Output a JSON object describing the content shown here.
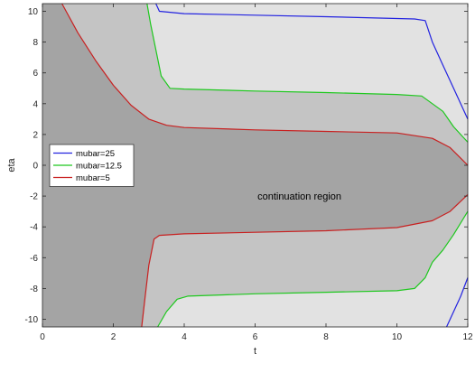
{
  "chart_data": {
    "type": "area",
    "title": "",
    "xlabel": "t",
    "ylabel": "eta",
    "xlim": [
      0,
      12
    ],
    "ylim": [
      -10.5,
      10.5
    ],
    "xticks": [
      0,
      2,
      4,
      6,
      8,
      10,
      12
    ],
    "yticks": [
      10,
      8,
      6,
      4,
      2,
      0,
      -2,
      -4,
      -6,
      -8,
      -10
    ],
    "grid": false,
    "legend_position": "middle-left",
    "annotation": "continuation region",
    "colors": {
      "band_light": "#e2e2e2",
      "band_mid": "#c4c4c4",
      "band_dark": "#a4a4a4",
      "axis": "#262626"
    },
    "series": [
      {
        "name": "mubar=25",
        "color": "#2323e0",
        "upper": [
          [
            3.2,
            10.5
          ],
          [
            3.3,
            10.0
          ],
          [
            4.0,
            9.85
          ],
          [
            6.0,
            9.75
          ],
          [
            8.0,
            9.65
          ],
          [
            10.5,
            9.5
          ],
          [
            10.8,
            9.4
          ],
          [
            11.0,
            8.0
          ],
          [
            11.3,
            6.5
          ],
          [
            11.6,
            5.0
          ],
          [
            12.0,
            3.0
          ]
        ],
        "lower": [
          [
            11.4,
            -10.5
          ],
          [
            11.8,
            -8.5
          ],
          [
            12.0,
            -7.3
          ]
        ]
      },
      {
        "name": "mubar=12.5",
        "color": "#1ec81e",
        "upper": [
          [
            2.95,
            10.5
          ],
          [
            3.05,
            9.2
          ],
          [
            3.2,
            7.5
          ],
          [
            3.35,
            5.8
          ],
          [
            3.6,
            5.0
          ],
          [
            4.0,
            4.95
          ],
          [
            6.0,
            4.82
          ],
          [
            8.0,
            4.72
          ],
          [
            10.0,
            4.6
          ],
          [
            10.7,
            4.5
          ],
          [
            11.0,
            4.0
          ],
          [
            11.3,
            3.5
          ],
          [
            11.6,
            2.5
          ],
          [
            12.0,
            1.5
          ]
        ],
        "lower": [
          [
            3.25,
            -10.5
          ],
          [
            3.5,
            -9.5
          ],
          [
            3.8,
            -8.7
          ],
          [
            4.1,
            -8.5
          ],
          [
            6.0,
            -8.35
          ],
          [
            8.0,
            -8.25
          ],
          [
            10.0,
            -8.15
          ],
          [
            10.5,
            -8.0
          ],
          [
            10.8,
            -7.3
          ],
          [
            11.0,
            -6.3
          ],
          [
            11.3,
            -5.5
          ],
          [
            11.6,
            -4.5
          ],
          [
            12.0,
            -3.0
          ]
        ]
      },
      {
        "name": "mubar=5",
        "color": "#c82020",
        "upper": [
          [
            0.55,
            10.5
          ],
          [
            1.0,
            8.6
          ],
          [
            1.5,
            6.8
          ],
          [
            2.0,
            5.2
          ],
          [
            2.5,
            3.9
          ],
          [
            3.0,
            3.0
          ],
          [
            3.5,
            2.6
          ],
          [
            4.0,
            2.45
          ],
          [
            6.0,
            2.3
          ],
          [
            8.0,
            2.2
          ],
          [
            10.0,
            2.1
          ],
          [
            11.0,
            1.75
          ],
          [
            11.5,
            1.15
          ],
          [
            12.0,
            0.0
          ]
        ],
        "lower": [
          [
            2.8,
            -10.5
          ],
          [
            2.9,
            -8.5
          ],
          [
            3.0,
            -6.5
          ],
          [
            3.15,
            -4.8
          ],
          [
            3.3,
            -4.55
          ],
          [
            4.0,
            -4.45
          ],
          [
            6.0,
            -4.35
          ],
          [
            8.0,
            -4.25
          ],
          [
            10.0,
            -4.05
          ],
          [
            11.0,
            -3.6
          ],
          [
            11.5,
            -3.0
          ],
          [
            12.0,
            -1.9
          ]
        ]
      }
    ]
  }
}
